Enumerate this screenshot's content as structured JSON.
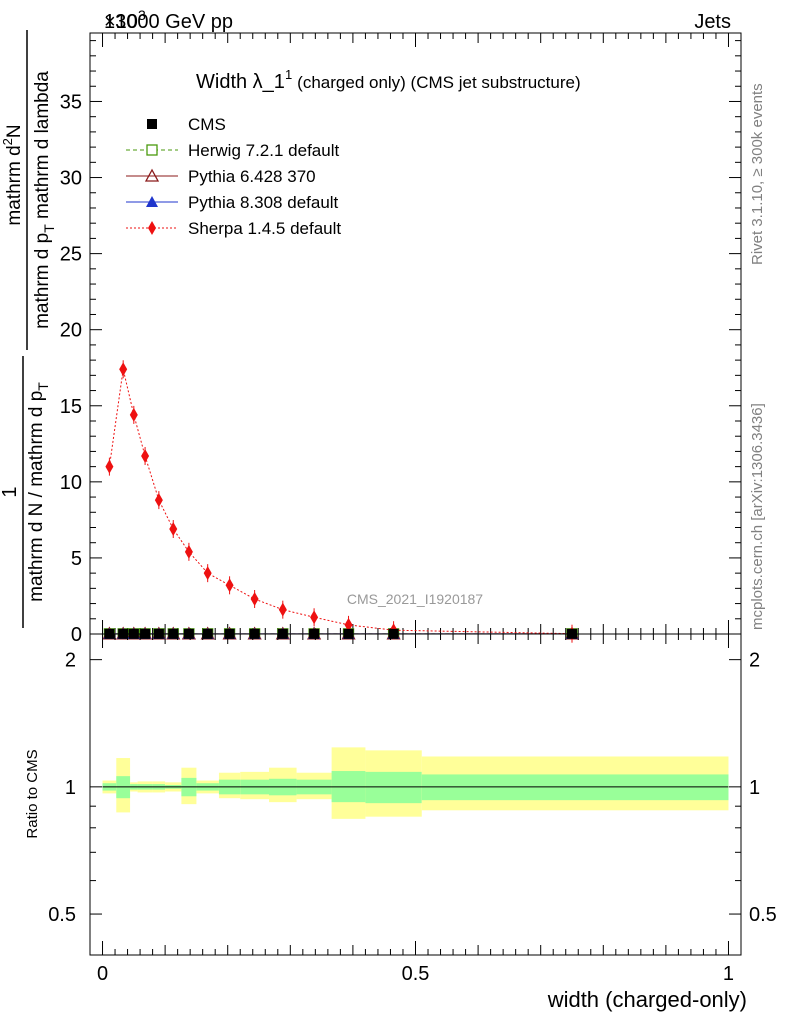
{
  "header": {
    "left": "13000 GeV pp",
    "right": "Jets",
    "exponent_prefix": "×10",
    "exponent_power": "3"
  },
  "side_text": {
    "rivet": "Rivet 3.1.10, ≥ 300k events",
    "mcplots": "mcplots.cern.ch [arXiv:1306.3436]"
  },
  "watermark": "CMS_2021_I1920187",
  "chart_data": [
    {
      "type": "scatter",
      "panel": "main",
      "title_main": "Width λ_1",
      "title_sup": "1",
      "title_sub": "(charged only) (CMS jet substructure)",
      "ylabel_frac_numerator_1": "1",
      "ylabel_frac_denominator_1": "mathrm d N / mathrm d p",
      "ylabel_frac_denominator_1_sub": "T",
      "ylabel_frac_numerator_2": "mathrm d",
      "ylabel_frac_numerator_2_sup": "2",
      "ylabel_frac_numerator_2_end": "N",
      "ylabel_frac_denominator_2": "mathrm d p",
      "ylabel_frac_denominator_2_sub": "T",
      "ylabel_frac_denominator_2_end": " mathrm d lambda",
      "xlim": [
        -0.02,
        1.02
      ],
      "ylim": [
        0,
        39.5
      ],
      "yticks": [
        0,
        5,
        10,
        15,
        20,
        25,
        30,
        35
      ],
      "ytick_labels": [
        "0",
        "5",
        "10",
        "15",
        "20",
        "25",
        "30",
        "35"
      ],
      "legend_position": "top-left",
      "series": [
        {
          "name": "CMS",
          "color": "#000000",
          "marker": "filled-square",
          "x": [
            0.011,
            0.033,
            0.05,
            0.068,
            0.09,
            0.113,
            0.138,
            0.168,
            0.203,
            0.243,
            0.288,
            0.338,
            0.393,
            0.465,
            0.75
          ],
          "y": [
            0.01,
            0.01,
            0.01,
            0.01,
            0.01,
            0.01,
            0.01,
            0.01,
            0.01,
            0.01,
            0.01,
            0.01,
            0.01,
            0.01,
            0.01
          ]
        },
        {
          "name": "Herwig 7.2.1 default",
          "color": "#4a9a0e",
          "marker": "open-square",
          "line": "dashed",
          "x": [
            0.011,
            0.033,
            0.05,
            0.068,
            0.09,
            0.113,
            0.138,
            0.168,
            0.203,
            0.243,
            0.288,
            0.338,
            0.393,
            0.465,
            0.75
          ],
          "y": [
            0.01,
            0.01,
            0.01,
            0.01,
            0.01,
            0.01,
            0.01,
            0.01,
            0.01,
            0.01,
            0.01,
            0.01,
            0.01,
            0.01,
            0.01
          ]
        },
        {
          "name": "Pythia 6.428 370",
          "color": "#8b1a1a",
          "marker": "open-triangle",
          "line": "solid",
          "x": [
            0.011,
            0.033,
            0.05,
            0.068,
            0.09,
            0.113,
            0.138,
            0.168,
            0.203,
            0.243,
            0.288,
            0.338,
            0.393,
            0.465,
            0.75
          ],
          "y": [
            0.01,
            0.01,
            0.01,
            0.01,
            0.01,
            0.01,
            0.01,
            0.01,
            0.01,
            0.01,
            0.01,
            0.01,
            0.01,
            0.01,
            0.01
          ]
        },
        {
          "name": "Pythia 8.308 default",
          "color": "#1f35cc",
          "marker": "filled-triangle",
          "line": "solid",
          "x": [
            0.011,
            0.033,
            0.05,
            0.068,
            0.09,
            0.113,
            0.138,
            0.168,
            0.203,
            0.243,
            0.288,
            0.338,
            0.393,
            0.465,
            0.75
          ],
          "y": [
            0.01,
            0.01,
            0.01,
            0.01,
            0.01,
            0.01,
            0.01,
            0.01,
            0.01,
            0.01,
            0.01,
            0.01,
            0.01,
            0.01,
            0.01
          ]
        },
        {
          "name": "Sherpa 1.4.5 default",
          "color": "#ee1111",
          "marker": "filled-diamond",
          "line": "dotted",
          "x": [
            0.011,
            0.033,
            0.05,
            0.068,
            0.09,
            0.113,
            0.138,
            0.168,
            0.203,
            0.243,
            0.288,
            0.338,
            0.393,
            0.465,
            0.75
          ],
          "y": [
            11.0,
            17.4,
            14.4,
            11.7,
            8.8,
            6.9,
            5.4,
            4.0,
            3.2,
            2.3,
            1.6,
            1.1,
            0.6,
            0.25,
            0.02
          ]
        }
      ]
    },
    {
      "type": "area",
      "panel": "ratio",
      "ylabel": "Ratio to CMS",
      "xlabel": "width (charged-only)",
      "xlim": [
        -0.02,
        1.02
      ],
      "ylim": [
        0.4,
        2.3
      ],
      "ytick_labels": [
        "0.5",
        "1",
        "2"
      ],
      "yticks": [
        0.5,
        1,
        2
      ],
      "xticks": [
        0,
        0.5,
        1
      ],
      "xtick_labels": [
        "0",
        "0.5",
        "1"
      ],
      "reference_line": 1,
      "bin_edges": [
        0.0,
        0.022,
        0.044,
        0.056,
        0.08,
        0.1,
        0.126,
        0.15,
        0.186,
        0.22,
        0.266,
        0.31,
        0.366,
        0.42,
        0.51,
        1.0
      ],
      "band_inner": {
        "name": "stat",
        "color": "#99ff99",
        "lo": [
          0.98,
          0.94,
          0.985,
          0.985,
          0.985,
          0.99,
          0.95,
          0.98,
          0.96,
          0.96,
          0.955,
          0.96,
          0.92,
          0.915,
          0.93
        ],
        "hi": [
          1.02,
          1.06,
          1.015,
          1.015,
          1.015,
          1.01,
          1.05,
          1.02,
          1.04,
          1.04,
          1.045,
          1.04,
          1.09,
          1.085,
          1.07
        ]
      },
      "band_outer": {
        "name": "total",
        "color": "#ffff99",
        "lo": [
          0.965,
          0.87,
          0.975,
          0.97,
          0.97,
          0.975,
          0.91,
          0.965,
          0.94,
          0.935,
          0.92,
          0.935,
          0.84,
          0.85,
          0.88
        ],
        "hi": [
          1.035,
          1.17,
          1.025,
          1.03,
          1.03,
          1.025,
          1.11,
          1.035,
          1.08,
          1.085,
          1.11,
          1.08,
          1.24,
          1.22,
          1.18
        ]
      }
    }
  ]
}
